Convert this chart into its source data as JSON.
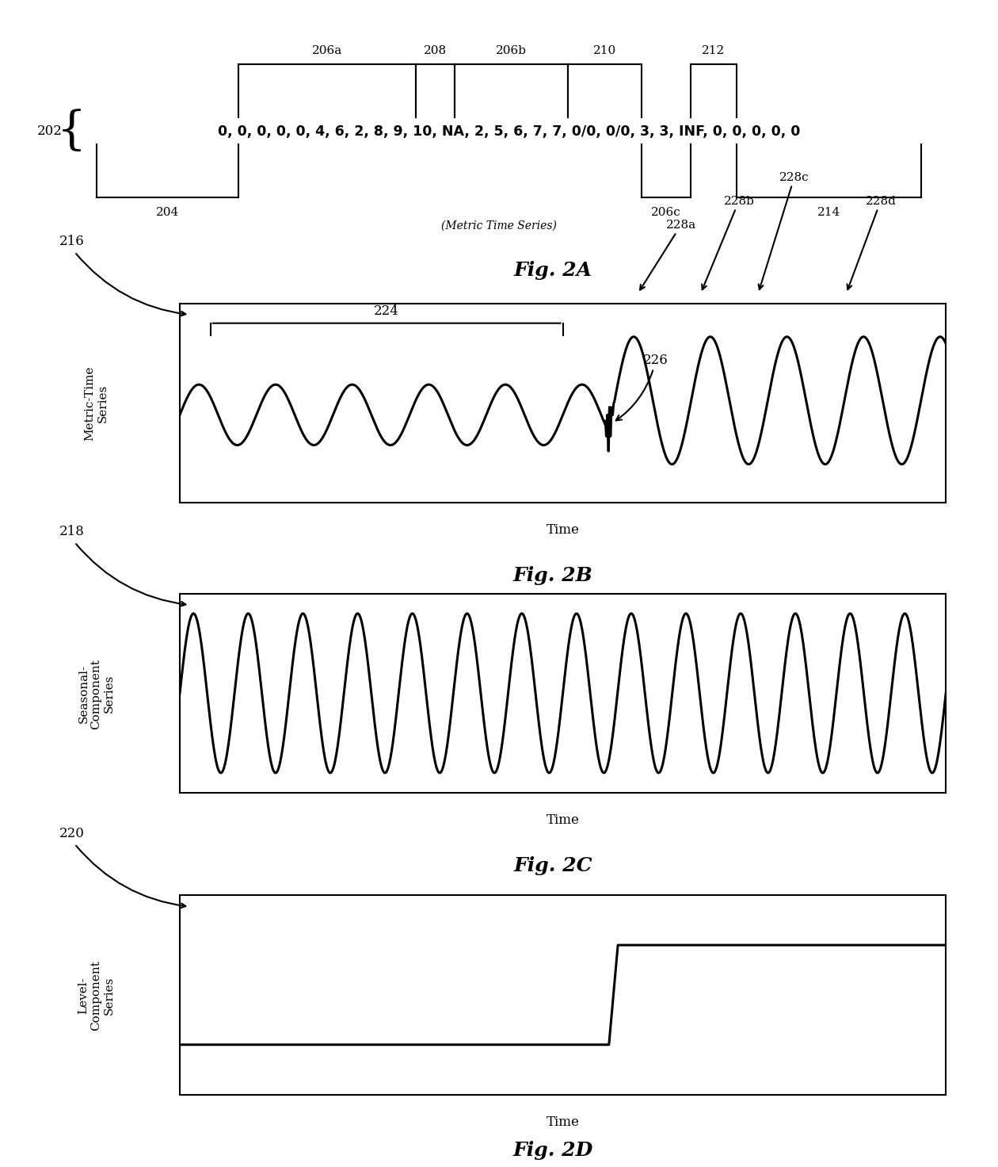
{
  "fig2a": {
    "fig_label": "Fig. 2A",
    "label_202": "202",
    "label_204": "204",
    "label_206a": "206a",
    "label_208": "208",
    "label_206b": "206b",
    "label_210": "210",
    "label_212": "212",
    "label_206c": "206c",
    "label_214": "214",
    "label_metric": "(Metric Time Series)",
    "main_text": "0, 0, 0, 0, 0, 4, 6, 2, 8, 9, 10, NA, 2, 5, 6, 7, 7, 0/0, 0/0, 3, 3, INF, 0, 0, 0, 0, 0",
    "seg_204": [
      0.09,
      0.235
    ],
    "seg_206a": [
      0.235,
      0.415
    ],
    "seg_208": [
      0.415,
      0.455
    ],
    "seg_206b": [
      0.455,
      0.57
    ],
    "seg_210": [
      0.57,
      0.645
    ],
    "seg_206c": [
      0.645,
      0.695
    ],
    "seg_212": [
      0.695,
      0.742
    ],
    "seg_214": [
      0.742,
      0.93
    ]
  },
  "fig2b": {
    "fig_label": "Fig. 2B",
    "label_216": "216",
    "label_224": "224",
    "label_226": "226",
    "label_228a": "228a",
    "label_228b": "228b",
    "label_228c": "228c",
    "label_228d": "228d",
    "xlabel": "Time",
    "ylabel": "Metric-Time\nSeries"
  },
  "fig2c": {
    "fig_label": "Fig. 2C",
    "label_218": "218",
    "xlabel": "Time",
    "ylabel": "Seasonal-\nComponent\nSeries"
  },
  "fig2d": {
    "fig_label": "Fig. 2D",
    "label_220": "220",
    "xlabel": "Time",
    "ylabel": "Level-\nComponent\nSeries"
  },
  "line_color": "#000000",
  "line_width": 2.2,
  "bg_color": "#ffffff"
}
